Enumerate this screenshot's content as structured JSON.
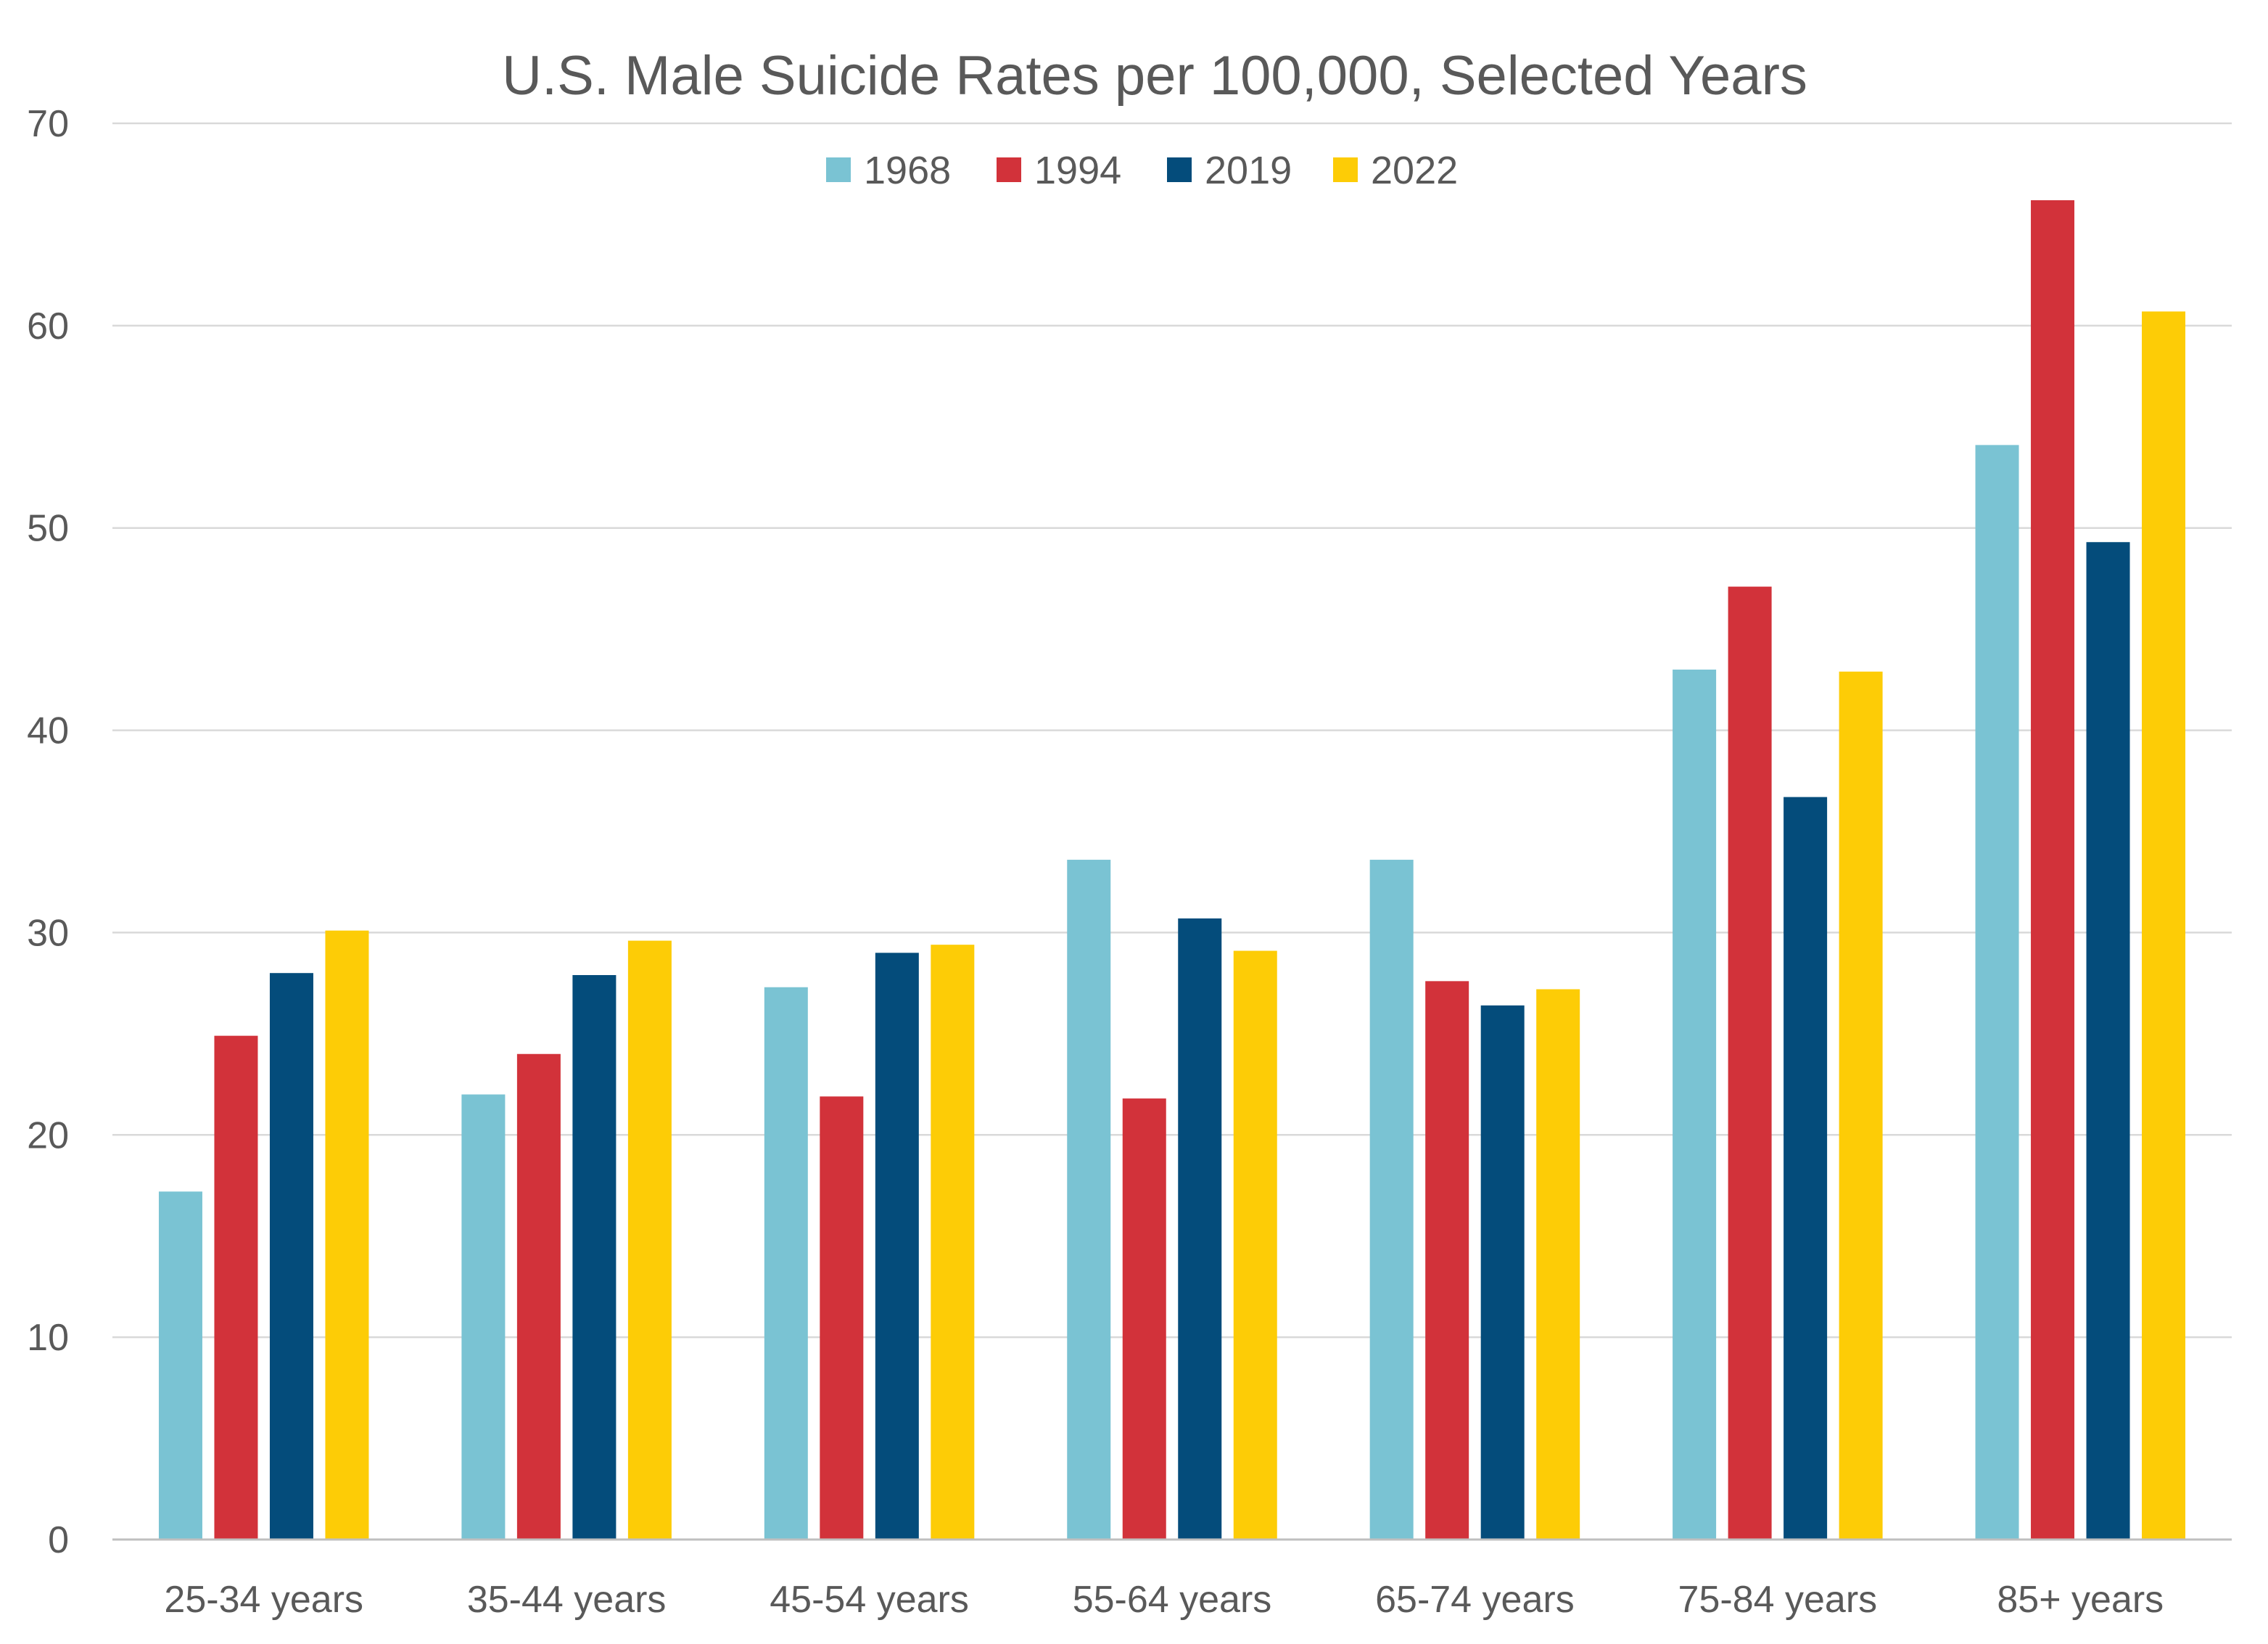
{
  "chart_data": {
    "type": "bar",
    "title": "U.S. Male Suicide Rates per 100,000, Selected Years",
    "xlabel": "",
    "ylabel": "",
    "ylim": [
      0,
      70
    ],
    "yticks": [
      0,
      10,
      20,
      30,
      40,
      50,
      60,
      70
    ],
    "grid": true,
    "legend_position": "top",
    "categories": [
      "25-34 years",
      "35-44 years",
      "45-54 years",
      "55-64 years",
      "65-74 years",
      "75-84 years",
      "85+ years"
    ],
    "series": [
      {
        "name": "1968",
        "color": "#7ac3d3",
        "values": [
          17.2,
          22.0,
          27.3,
          33.6,
          33.6,
          43.0,
          54.1
        ]
      },
      {
        "name": "1994",
        "color": "#d2323a",
        "values": [
          24.9,
          24.0,
          21.9,
          21.8,
          27.6,
          47.1,
          66.2
        ]
      },
      {
        "name": "2019",
        "color": "#044c7b",
        "values": [
          28.0,
          27.9,
          29.0,
          30.7,
          26.4,
          36.7,
          49.3
        ]
      },
      {
        "name": "2022",
        "color": "#fdcc06",
        "values": [
          30.1,
          29.6,
          29.4,
          29.1,
          27.2,
          42.9,
          60.7
        ]
      }
    ]
  }
}
